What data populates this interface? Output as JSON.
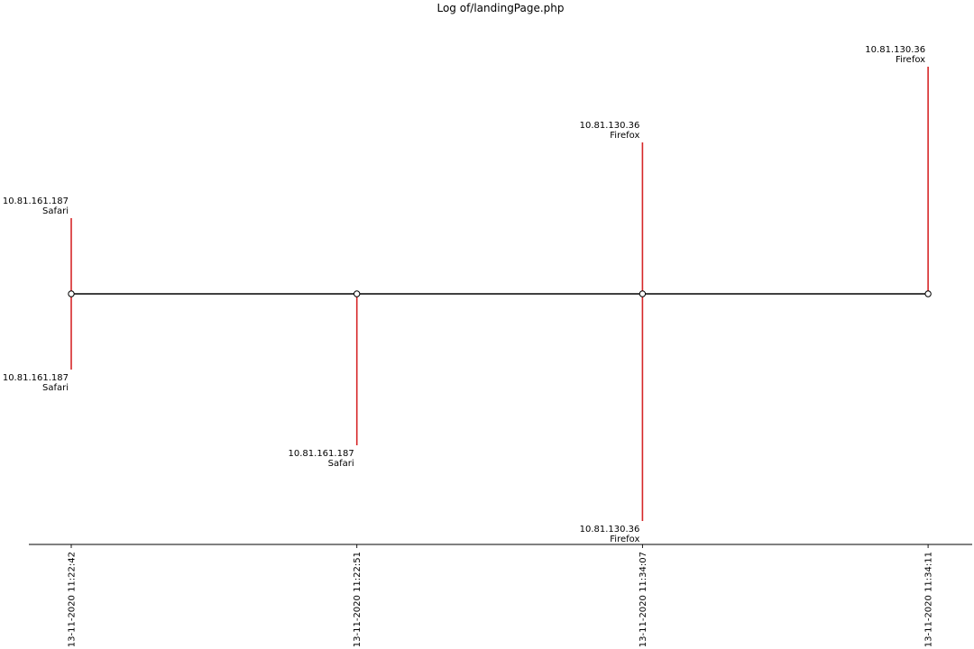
{
  "chart_data": {
    "type": "timeline",
    "title": "Log of/landingPage.php",
    "xlabel": "",
    "ylabel": "",
    "categories": [
      "13-11-2020 11:22:42",
      "13-11-2020 11:22:51",
      "13-11-2020 11:34:07",
      "13-11-2020 11:34:11"
    ],
    "events": [
      {
        "x": "13-11-2020 11:22:42",
        "level": 1,
        "ip": "10.81.161.187",
        "browser": "Safari"
      },
      {
        "x": "13-11-2020 11:22:42",
        "level": -1,
        "ip": "10.81.161.187",
        "browser": "Safari"
      },
      {
        "x": "13-11-2020 11:22:51",
        "level": -2,
        "ip": "10.81.161.187",
        "browser": "Safari"
      },
      {
        "x": "13-11-2020 11:34:07",
        "level": 2,
        "ip": "10.81.130.36",
        "browser": "Firefox"
      },
      {
        "x": "13-11-2020 11:34:07",
        "level": -3,
        "ip": "10.81.130.36",
        "browser": "Firefox"
      },
      {
        "x": "13-11-2020 11:34:11",
        "level": 3,
        "ip": "10.81.130.36",
        "browser": "Firefox"
      }
    ],
    "ylim": [
      -3.3,
      3.3
    ],
    "grid": false,
    "legend": "none",
    "colors": {
      "stem": "#d62728",
      "baseline": "#000000",
      "marker_fill": "#ffffff",
      "marker_edge": "#000000",
      "axis": "#000000"
    }
  }
}
